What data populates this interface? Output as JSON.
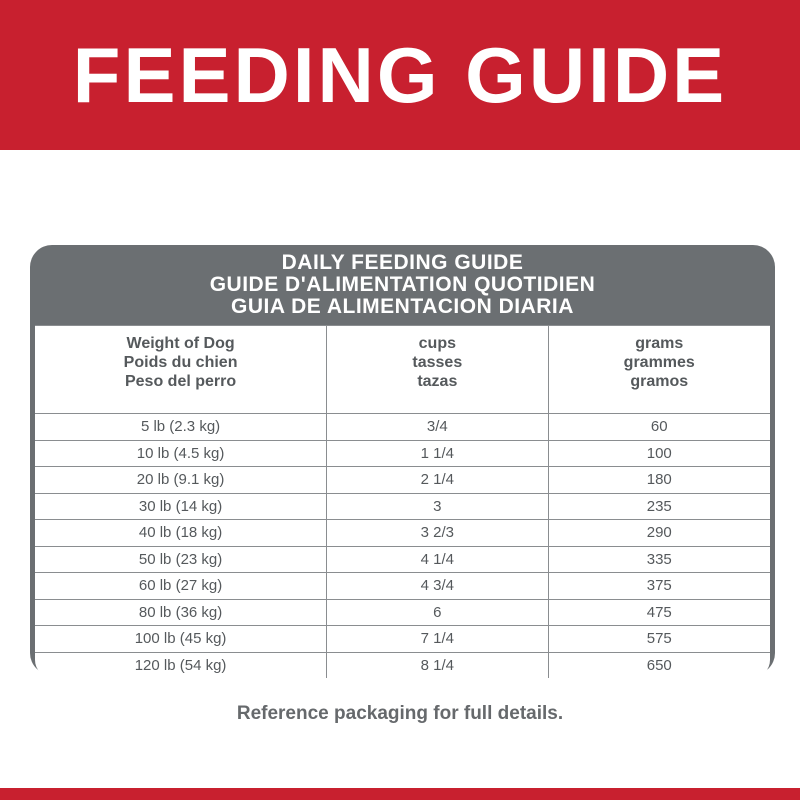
{
  "header": {
    "title": "FEEDING GUIDE"
  },
  "table": {
    "title_lines": [
      "DAILY FEEDING GUIDE",
      "GUIDE D'ALIMENTATION QUOTIDIEN",
      "GUIA DE ALIMENTACION DIARIA"
    ],
    "columns": [
      [
        "Weight of Dog",
        "Poids du chien",
        "Peso del perro"
      ],
      [
        "cups",
        "tasses",
        "tazas"
      ],
      [
        "grams",
        "grammes",
        "gramos"
      ]
    ],
    "rows": [
      [
        "5 lb (2.3 kg)",
        "3/4",
        60
      ],
      [
        "10 lb (4.5 kg)",
        "1 1/4",
        100
      ],
      [
        "20 lb (9.1 kg)",
        "2 1/4",
        180
      ],
      [
        "30 lb (14 kg)",
        "3",
        235
      ],
      [
        "40 lb (18 kg)",
        "3 2/3",
        290
      ],
      [
        "50 lb (23 kg)",
        "4 1/4",
        335
      ],
      [
        "60 lb (27 kg)",
        "4 3/4",
        375
      ],
      [
        "80 lb (36 kg)",
        "6",
        475
      ],
      [
        "100 lb (45 kg)",
        "7 1/4",
        575
      ],
      [
        "120 lb (54 kg)",
        "8 1/4",
        650
      ]
    ]
  },
  "footer": {
    "note": "Reference packaging for full details."
  }
}
